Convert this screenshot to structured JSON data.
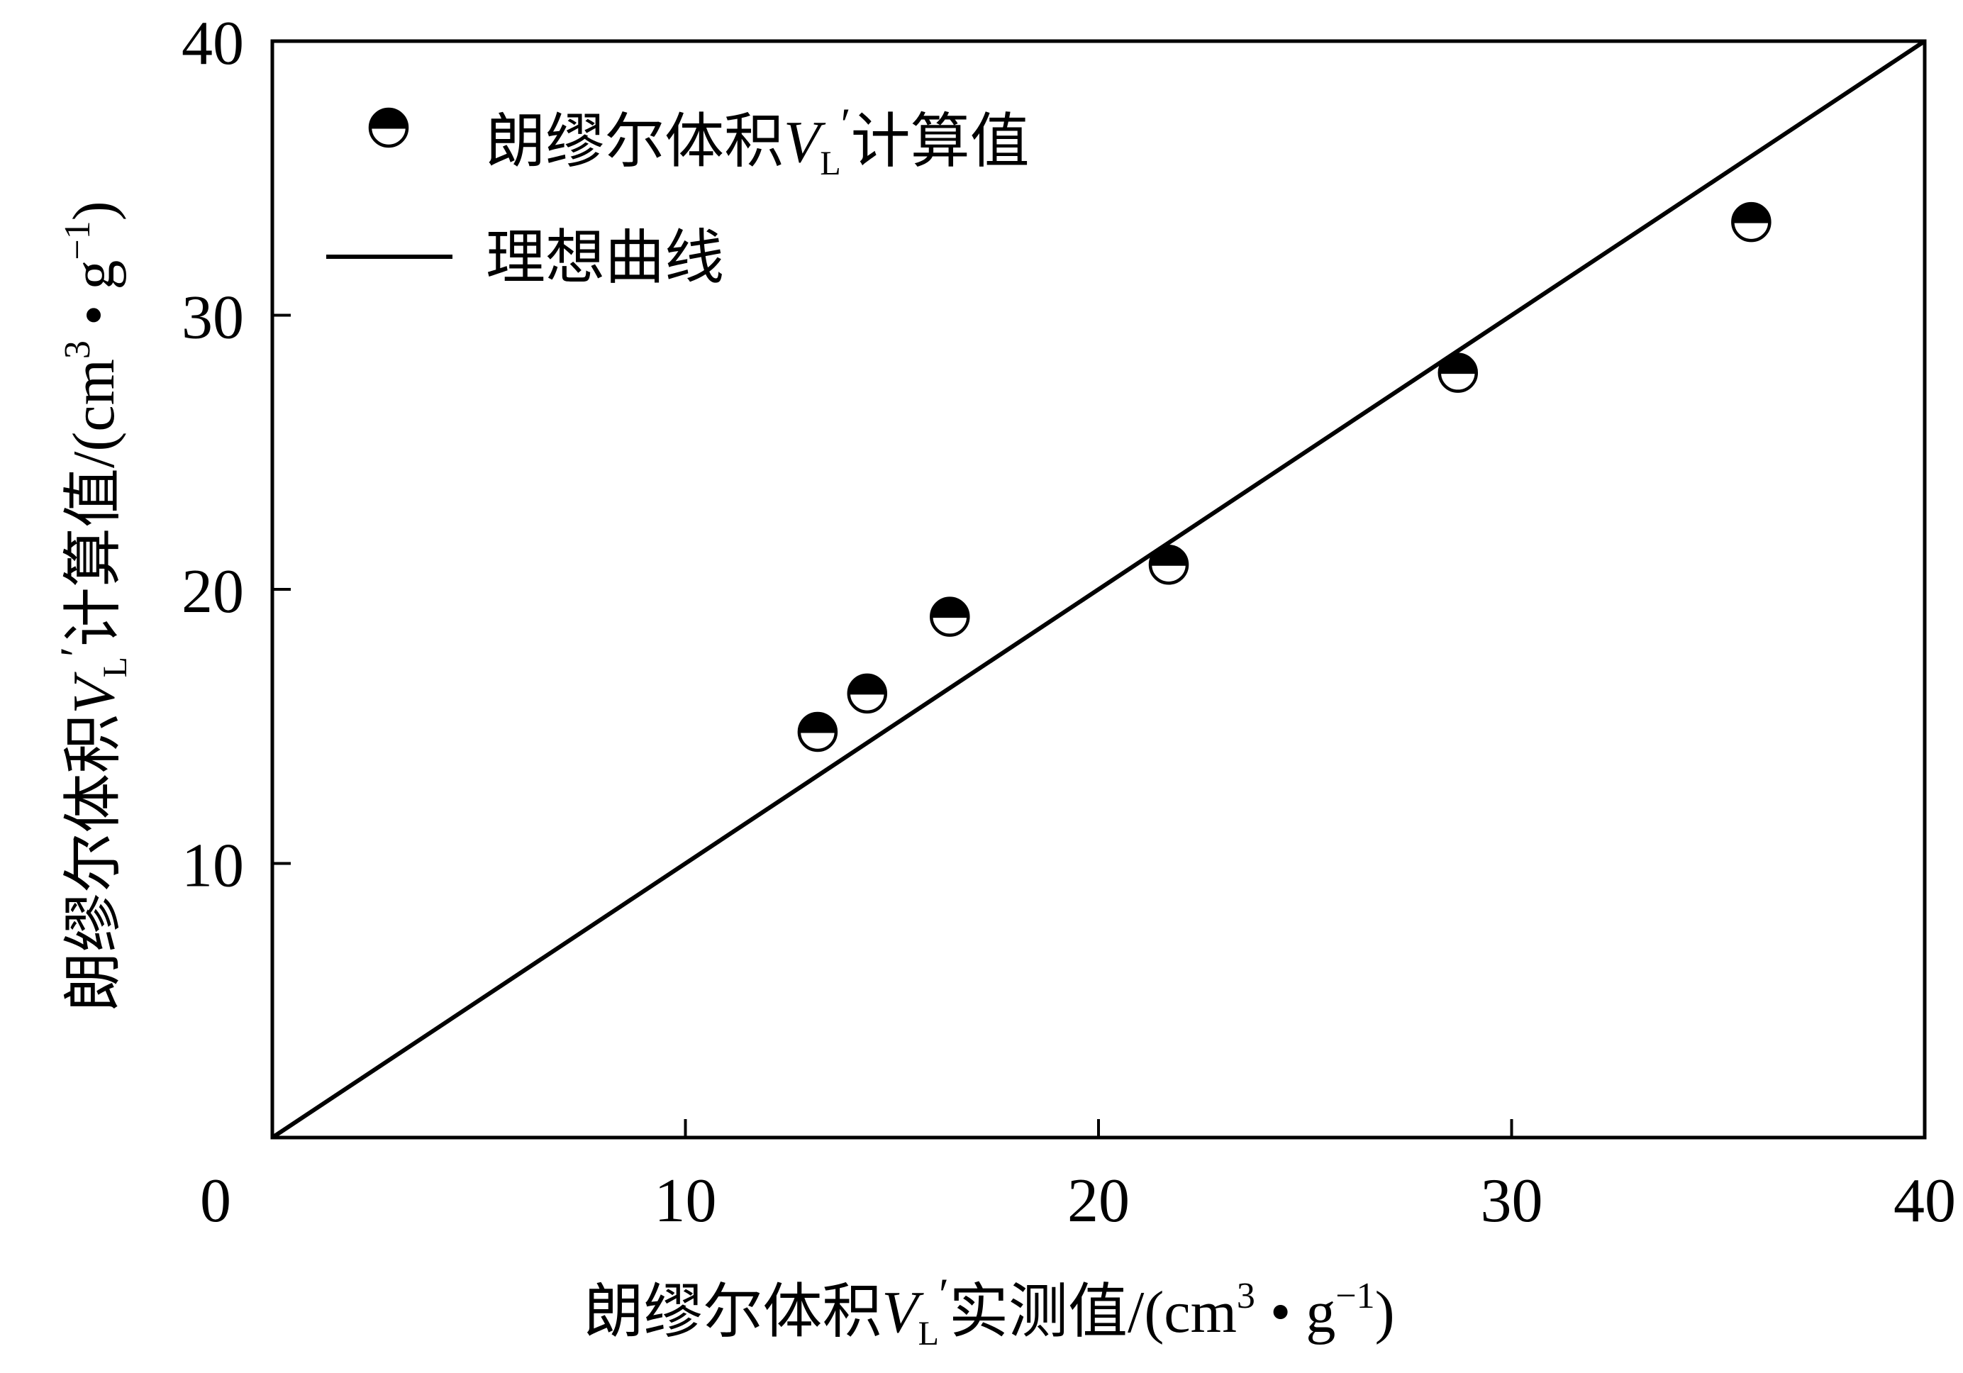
{
  "chart_data": {
    "type": "scatter",
    "xlim": [
      0,
      40
    ],
    "ylim": [
      0,
      40
    ],
    "x_ticks": [
      "0",
      "10",
      "20",
      "30",
      "40"
    ],
    "y_ticks": [
      "10",
      "20",
      "30",
      "40"
    ],
    "grid": false,
    "legend_position": "top-left",
    "xlabel": {
      "prefix": "朗缪尔体积",
      "var": "V",
      "sub": "L",
      "prime": "′",
      "suffix": "实测值/(cm",
      "sup1": "3",
      "mid": " • g",
      "sup2": "−1",
      "end": ")"
    },
    "ylabel": {
      "prefix": "朗缪尔体积",
      "var": "V",
      "sub": "L",
      "prime": "′",
      "suffix": "计算值/(cm",
      "sup1": "3",
      "mid": " • g",
      "sup2": "−1",
      "end": ")"
    },
    "series": [
      {
        "kind": "scatter",
        "legend": {
          "prefix": "朗缪尔体积",
          "var": "V",
          "sub": "L",
          "prime": "′",
          "suffix": "计算值"
        },
        "marker": "half-filled-circle",
        "points": [
          {
            "x": 13.2,
            "y": 14.8
          },
          {
            "x": 14.4,
            "y": 16.2
          },
          {
            "x": 16.4,
            "y": 19.0
          },
          {
            "x": 21.7,
            "y": 20.9
          },
          {
            "x": 28.7,
            "y": 27.9
          },
          {
            "x": 35.8,
            "y": 33.4
          }
        ]
      },
      {
        "kind": "line",
        "legend": {
          "text": "理想曲线"
        },
        "points": [
          {
            "x": 0,
            "y": 0
          },
          {
            "x": 40,
            "y": 40
          }
        ]
      }
    ]
  }
}
